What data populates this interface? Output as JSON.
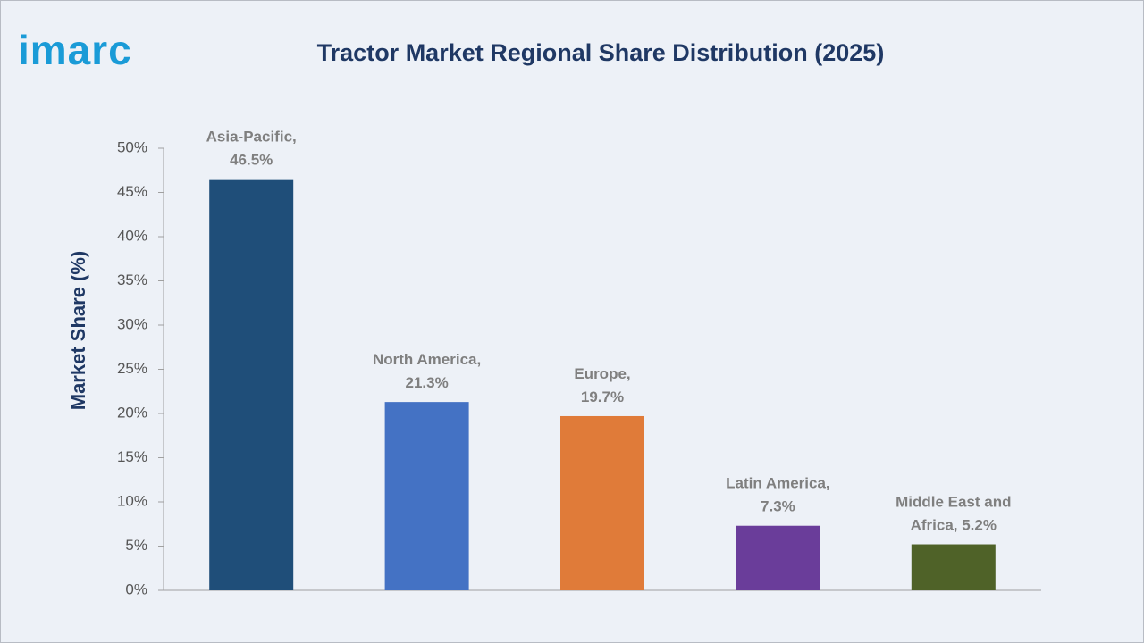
{
  "logo": "imarc",
  "chart_data": {
    "type": "bar",
    "title": "Tractor Market Regional Share Distribution (2025)",
    "y_label": "Market Share (%)",
    "values": [
      46.5,
      21.3,
      19.7,
      7.3,
      5.2
    ],
    "value_labels": [
      [
        "Asia-Pacific,",
        "46.5%"
      ],
      [
        "North America,",
        "21.3%"
      ],
      [
        "Europe,",
        "19.7%"
      ],
      [
        "Latin America,",
        "7.3%"
      ],
      [
        "Middle East and",
        "Africa, 5.2%"
      ]
    ],
    "colors": [
      "#1f4e79",
      "#4472c4",
      "#e07b39",
      "#6a3d9a",
      "#4f6228"
    ],
    "ylim": [
      0,
      50
    ],
    "yticks": [
      {
        "value": 0,
        "label": "0%"
      },
      {
        "value": 5,
        "label": "5%"
      },
      {
        "value": 10,
        "label": "10%"
      },
      {
        "value": 15,
        "label": "15%"
      },
      {
        "value": 20,
        "label": "20%"
      },
      {
        "value": 25,
        "label": "25%"
      },
      {
        "value": 30,
        "label": "30%"
      },
      {
        "value": 35,
        "label": "35%"
      },
      {
        "value": 40,
        "label": "40%"
      },
      {
        "value": 45,
        "label": "45%"
      },
      {
        "value": 50,
        "label": "50%"
      }
    ],
    "grid": false
  }
}
